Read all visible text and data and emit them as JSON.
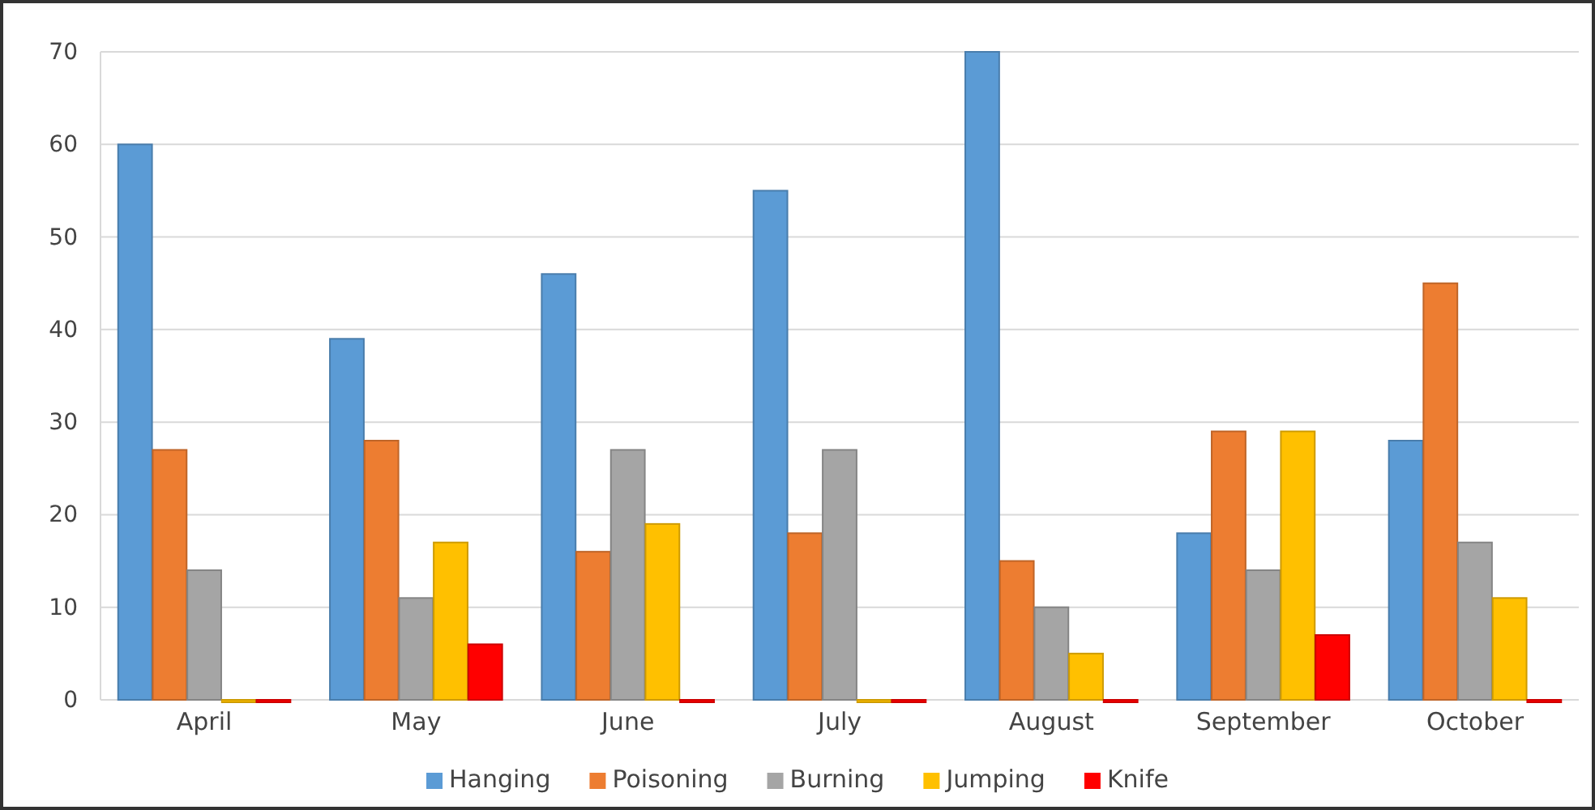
{
  "chart_data": {
    "type": "bar",
    "categories": [
      "April",
      "May",
      "June",
      "July",
      "August",
      "September",
      "October"
    ],
    "series": [
      {
        "name": "Hanging",
        "color": "#5b9bd5",
        "values": [
          60,
          39,
          46,
          55,
          70,
          18,
          28
        ]
      },
      {
        "name": "Poisoning",
        "color": "#ed7d31",
        "values": [
          27,
          28,
          16,
          18,
          15,
          29,
          45
        ]
      },
      {
        "name": "Burning",
        "color": "#a5a5a5",
        "values": [
          14,
          11,
          27,
          27,
          10,
          14,
          17
        ]
      },
      {
        "name": "Jumping",
        "color": "#ffc000",
        "values": [
          0,
          17,
          19,
          0,
          5,
          29,
          11
        ]
      },
      {
        "name": "Knife",
        "color": "#ff0000",
        "values": [
          0,
          6,
          0,
          0,
          0,
          7,
          0
        ]
      }
    ],
    "ylim": [
      0,
      70
    ],
    "yticks": [
      0,
      10,
      20,
      30,
      40,
      50,
      60,
      70
    ],
    "grid": "y",
    "legend": "bottom"
  }
}
